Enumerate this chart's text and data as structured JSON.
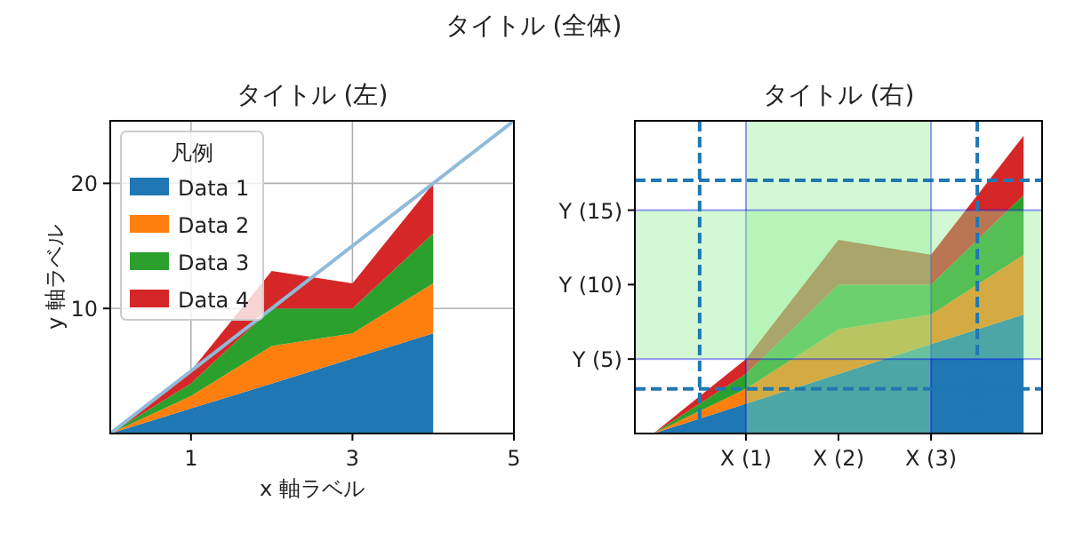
{
  "chart_data": [
    {
      "type": "other",
      "title": "タイトル (全体)"
    },
    {
      "type": "area",
      "stacked": true,
      "title": "タイトル (左)",
      "xlabel": "x 軸ラベル",
      "ylabel": "y 軸ラベル",
      "x": [
        0,
        1,
        2,
        3,
        4
      ],
      "xlim": [
        0,
        5
      ],
      "ylim": [
        0,
        25
      ],
      "xticks": [
        1,
        3,
        5
      ],
      "yticks": [
        10,
        20
      ],
      "grid": true,
      "legend": "top left",
      "legend_title": "凡例",
      "series": [
        {
          "name": "Data 1",
          "color": "#1f77b4",
          "values": [
            0,
            2,
            4,
            6,
            8
          ]
        },
        {
          "name": "Data 2",
          "color": "#ff7f0e",
          "values": [
            0,
            1,
            3,
            2,
            4
          ]
        },
        {
          "name": "Data 3",
          "color": "#2ca02c",
          "values": [
            0,
            1,
            3,
            2,
            4
          ]
        },
        {
          "name": "Data 4",
          "color": "#d62728",
          "values": [
            0,
            1,
            3,
            2,
            4
          ]
        },
        {
          "type": "line",
          "color": "#8fbbd9",
          "x": [
            0,
            5
          ],
          "values": [
            0,
            25
          ]
        }
      ]
    },
    {
      "type": "area",
      "stacked": true,
      "title": "タイトル (右)",
      "x": [
        0,
        1,
        2,
        3,
        4
      ],
      "xlim": [
        -0.2,
        4.2
      ],
      "ylim": [
        0,
        21
      ],
      "xticks": [
        {
          "value": 1,
          "label": "X (1)"
        },
        {
          "value": 2,
          "label": "X (2)"
        },
        {
          "value": 3,
          "label": "X (3)"
        }
      ],
      "yticks": [
        {
          "value": 5,
          "label": "Y (5)"
        },
        {
          "value": 10,
          "label": "Y (10)"
        },
        {
          "value": 15,
          "label": "Y (15)"
        }
      ],
      "series": [
        {
          "color": "#1f77b4",
          "values": [
            0,
            2,
            4,
            6,
            8
          ]
        },
        {
          "color": "#ff7f0e",
          "values": [
            0,
            1,
            3,
            2,
            4
          ]
        },
        {
          "color": "#2ca02c",
          "values": [
            0,
            1,
            3,
            2,
            4
          ]
        },
        {
          "color": "#d62728",
          "values": [
            0,
            1,
            3,
            2,
            4
          ]
        }
      ],
      "bands": [
        {
          "axis": "x",
          "from": 1,
          "to": 3,
          "color": "#90ee90"
        },
        {
          "axis": "y",
          "from": 5,
          "to": 15,
          "color": "#90ee90"
        }
      ],
      "ref_lines": [
        {
          "axis": "x",
          "value": 0.5,
          "color": "#1f77b4",
          "line_style": "dashed"
        },
        {
          "axis": "x",
          "value": 3.5,
          "color": "#1f77b4",
          "line_style": "dashed"
        },
        {
          "axis": "y",
          "value": 3,
          "color": "#1f77b4",
          "line_style": "dashed"
        },
        {
          "axis": "y",
          "value": 17,
          "color": "#1f77b4",
          "line_style": "dashed"
        }
      ]
    }
  ]
}
